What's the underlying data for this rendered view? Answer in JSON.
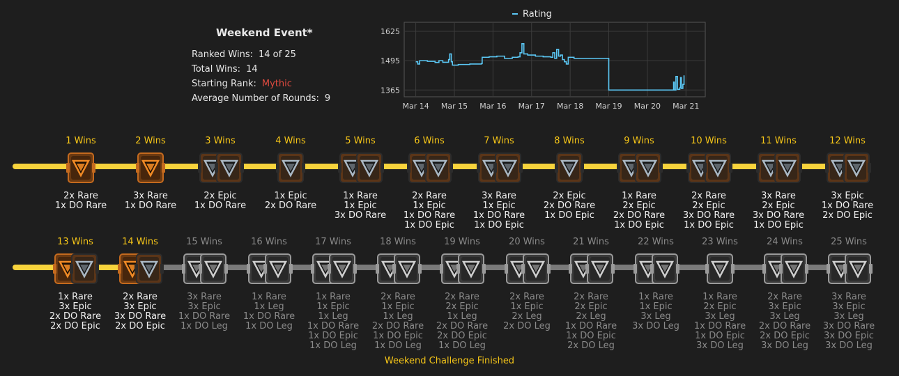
{
  "event": {
    "title": "Weekend Event*",
    "stats": [
      {
        "label": "Ranked Wins:",
        "value": "14 of 25"
      },
      {
        "label": "Total Wins:",
        "value": "14"
      },
      {
        "label": "Starting Rank:",
        "value": "Mythic",
        "color": "#e04a3f"
      },
      {
        "label": "Average Number of Rounds:",
        "value": "9"
      }
    ]
  },
  "chart_data": {
    "type": "line",
    "series": [
      {
        "name": "Rating",
        "color": "#5bc8f5"
      }
    ],
    "yticks": [
      1625,
      1495,
      1365
    ],
    "ylim": [
      1335,
      1665
    ],
    "xticks": [
      "Mar 14",
      "Mar 15",
      "Mar 16",
      "Mar 17",
      "Mar 18",
      "Mar 19",
      "Mar 20",
      "Mar 21"
    ],
    "xlim": [
      -0.3,
      7.5
    ],
    "points": [
      [
        0,
        1490
      ],
      [
        0.05,
        1480
      ],
      [
        0.1,
        1495
      ],
      [
        0.3,
        1492
      ],
      [
        0.5,
        1487
      ],
      [
        0.6,
        1495
      ],
      [
        0.7,
        1488
      ],
      [
        0.85,
        1500
      ],
      [
        0.88,
        1525
      ],
      [
        0.92,
        1490
      ],
      [
        0.95,
        1475
      ],
      [
        1.1,
        1478
      ],
      [
        1.4,
        1480
      ],
      [
        1.7,
        1482
      ],
      [
        1.72,
        1510
      ],
      [
        1.9,
        1512
      ],
      [
        2.1,
        1515
      ],
      [
        2.3,
        1505
      ],
      [
        2.5,
        1510
      ],
      [
        2.65,
        1512
      ],
      [
        2.7,
        1530
      ],
      [
        2.75,
        1570
      ],
      [
        2.8,
        1525
      ],
      [
        2.9,
        1520
      ],
      [
        3.1,
        1515
      ],
      [
        3.3,
        1512
      ],
      [
        3.5,
        1510
      ],
      [
        3.55,
        1530
      ],
      [
        3.6,
        1505
      ],
      [
        3.65,
        1545
      ],
      [
        3.7,
        1515
      ],
      [
        3.75,
        1520
      ],
      [
        3.8,
        1500
      ],
      [
        3.85,
        1490
      ],
      [
        3.9,
        1480
      ],
      [
        3.95,
        1510
      ],
      [
        4.1,
        1505
      ],
      [
        4.5,
        1505
      ],
      [
        4.95,
        1505
      ],
      [
        5.0,
        1365
      ],
      [
        5.5,
        1365
      ],
      [
        6.0,
        1365
      ],
      [
        6.6,
        1365
      ],
      [
        6.68,
        1400
      ],
      [
        6.7,
        1365
      ],
      [
        6.74,
        1425
      ],
      [
        6.78,
        1368
      ],
      [
        6.84,
        1375
      ],
      [
        6.86,
        1420
      ],
      [
        6.88,
        1372
      ],
      [
        6.92,
        1390
      ],
      [
        6.95,
        1430
      ]
    ]
  },
  "rows": [
    [
      {
        "label": "1 Wins",
        "state": "earned",
        "chests": [
          "rare"
        ],
        "rewards": [
          "2x Rare",
          "1x DO Rare"
        ]
      },
      {
        "label": "2 Wins",
        "state": "earned",
        "chests": [
          "rare"
        ],
        "rewards": [
          "3x Rare",
          "1x DO Rare"
        ]
      },
      {
        "label": "3 Wins",
        "state": "earned",
        "chests": [
          "epic",
          "epic"
        ],
        "rewards": [
          "2x Epic",
          "1x DO Rare"
        ]
      },
      {
        "label": "4 Wins",
        "state": "earned",
        "chests": [
          "epic"
        ],
        "rewards": [
          "1x Epic",
          "2x DO Rare"
        ]
      },
      {
        "label": "5 Wins",
        "state": "earned",
        "chests": [
          "epic",
          "epic"
        ],
        "rewards": [
          "1x Rare",
          "1x Epic",
          "3x DO Rare"
        ]
      },
      {
        "label": "6 Wins",
        "state": "earned",
        "chests": [
          "epic",
          "epic"
        ],
        "rewards": [
          "2x Rare",
          "1x Epic",
          "1x DO Rare",
          "1x DO Epic"
        ]
      },
      {
        "label": "7 Wins",
        "state": "earned",
        "chests": [
          "epic",
          "epic"
        ],
        "rewards": [
          "3x Rare",
          "1x Epic",
          "1x DO Rare",
          "1x DO Epic"
        ]
      },
      {
        "label": "8 Wins",
        "state": "earned",
        "chests": [
          "epic"
        ],
        "rewards": [
          "2x Epic",
          "2x DO Rare",
          "1x DO Epic"
        ]
      },
      {
        "label": "9 Wins",
        "state": "earned",
        "chests": [
          "epic",
          "epic"
        ],
        "rewards": [
          "1x Rare",
          "2x Epic",
          "2x DO Rare",
          "1x DO Epic"
        ]
      },
      {
        "label": "10 Wins",
        "state": "earned",
        "chests": [
          "epic",
          "epic"
        ],
        "rewards": [
          "2x Rare",
          "2x Epic",
          "3x DO Rare",
          "1x DO Epic"
        ]
      },
      {
        "label": "11 Wins",
        "state": "earned",
        "chests": [
          "epic",
          "epic"
        ],
        "rewards": [
          "3x Rare",
          "2x Epic",
          "3x DO Rare",
          "1x DO Epic"
        ]
      },
      {
        "label": "12 Wins",
        "state": "earned",
        "chests": [
          "epic",
          "epic"
        ],
        "rewards": [
          "3x Epic",
          "1x DO Rare",
          "2x DO Epic"
        ]
      }
    ],
    [
      {
        "label": "13 Wins",
        "state": "earned",
        "chests": [
          "rare",
          "epic"
        ],
        "rewards": [
          "1x Rare",
          "3x Epic",
          "2x DO Rare",
          "2x DO Epic"
        ]
      },
      {
        "label": "14 Wins",
        "state": "earned",
        "chests": [
          "rare",
          "epic"
        ],
        "rewards": [
          "2x Rare",
          "3x Epic",
          "3x DO Rare",
          "2x DO Epic"
        ]
      },
      {
        "label": "15 Wins",
        "state": "locked",
        "chests": [
          "leg",
          "leg"
        ],
        "rewards": [
          "3x Rare",
          "3x Epic",
          "1x DO Rare",
          "1x DO Leg"
        ]
      },
      {
        "label": "16 Wins",
        "state": "locked",
        "chests": [
          "leg",
          "leg"
        ],
        "rewards": [
          "1x Rare",
          "1x Leg",
          "1x DO Rare",
          "1x DO Leg"
        ]
      },
      {
        "label": "17 Wins",
        "state": "locked",
        "chests": [
          "leg",
          "leg"
        ],
        "rewards": [
          "1x Rare",
          "1x Epic",
          "1x Leg",
          "1x DO Rare",
          "1x DO Epic",
          "1x DO Leg"
        ]
      },
      {
        "label": "18 Wins",
        "state": "locked",
        "chests": [
          "leg",
          "leg"
        ],
        "rewards": [
          "2x Rare",
          "1x Epic",
          "1x Leg",
          "2x DO Rare",
          "1x DO Epic",
          "1x DO Leg"
        ]
      },
      {
        "label": "19 Wins",
        "state": "locked",
        "chests": [
          "leg",
          "leg"
        ],
        "rewards": [
          "2x Rare",
          "2x Epic",
          "1x Leg",
          "2x DO Rare",
          "2x DO Epic",
          "1x DO Leg"
        ]
      },
      {
        "label": "20 Wins",
        "state": "locked",
        "chests": [
          "leg",
          "leg"
        ],
        "rewards": [
          "2x Rare",
          "1x Epic",
          "2x Leg",
          "2x DO Leg"
        ]
      },
      {
        "label": "21 Wins",
        "state": "locked",
        "chests": [
          "leg",
          "leg"
        ],
        "rewards": [
          "2x Rare",
          "2x Epic",
          "2x Leg",
          "1x DO Rare",
          "1x DO Epic",
          "2x DO Leg"
        ]
      },
      {
        "label": "22 Wins",
        "state": "locked",
        "chests": [
          "leg",
          "leg"
        ],
        "rewards": [
          "1x Rare",
          "1x Epic",
          "3x Leg",
          "3x DO Leg"
        ]
      },
      {
        "label": "23 Wins",
        "state": "locked",
        "chests": [
          "leg"
        ],
        "rewards": [
          "1x Rare",
          "2x Epic",
          "3x Leg",
          "1x DO Rare",
          "1x DO Epic",
          "3x DO Leg"
        ]
      },
      {
        "label": "24 Wins",
        "state": "locked",
        "chests": [
          "leg",
          "leg"
        ],
        "rewards": [
          "2x Rare",
          "3x Epic",
          "3x Leg",
          "2x DO Rare",
          "2x DO Epic",
          "3x DO Leg"
        ]
      },
      {
        "label": "25 Wins",
        "state": "locked",
        "chests": [
          "leg",
          "leg"
        ],
        "rewards": [
          "3x Rare",
          "3x Epic",
          "3x Leg",
          "3x DO Rare",
          "3x DO Epic",
          "3x DO Leg"
        ]
      }
    ]
  ],
  "footer": {
    "status": "Weekend Challenge Finished"
  },
  "colors": {
    "gold": "#f7d33c",
    "win_label": "#f5c518",
    "locked": "#8a8a8a",
    "mythic": "#e04a3f",
    "rating_line": "#5bc8f5"
  }
}
